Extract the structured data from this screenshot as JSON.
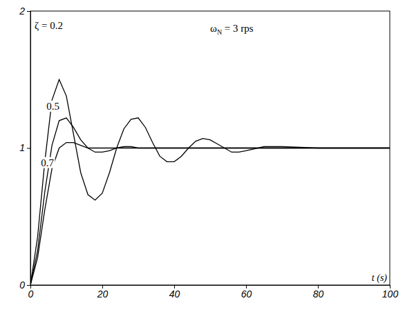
{
  "chart_data": {
    "type": "line",
    "x_label": "t (s)",
    "annotation": "ωN = 3 rps",
    "x": [
      0,
      2,
      4,
      6,
      8,
      10,
      12,
      14,
      16,
      18,
      20,
      22,
      24,
      26,
      28,
      30,
      32,
      34,
      36,
      38,
      40,
      42,
      44,
      46,
      48,
      50,
      52,
      54,
      56,
      58,
      60,
      65,
      70,
      80,
      90,
      100
    ],
    "series": [
      {
        "name": "ζ = 0.2",
        "color": "#000000",
        "values": [
          0,
          0.35,
          0.9,
          1.35,
          1.5,
          1.38,
          1.1,
          0.82,
          0.66,
          0.62,
          0.67,
          0.82,
          1.0,
          1.14,
          1.21,
          1.22,
          1.15,
          1.04,
          0.94,
          0.9,
          0.9,
          0.94,
          1.0,
          1.05,
          1.07,
          1.06,
          1.03,
          1.0,
          0.97,
          0.97,
          0.98,
          1.01,
          1.01,
          1.0,
          1.0,
          1.0
        ]
      },
      {
        "name": "0.5",
        "color": "#000000",
        "values": [
          0,
          0.25,
          0.68,
          1.02,
          1.2,
          1.22,
          1.15,
          1.06,
          1.0,
          0.97,
          0.97,
          0.98,
          1.0,
          1.01,
          1.01,
          1.0,
          1.0,
          1.0,
          1.0,
          1.0,
          1.0,
          1.0,
          1.0,
          1.0,
          1.0,
          1.0,
          1.0,
          1.0,
          1.0,
          1.0,
          1.0,
          1.0,
          1.0,
          1.0,
          1.0,
          1.0
        ]
      },
      {
        "name": "0.7",
        "color": "#000000",
        "values": [
          0,
          0.2,
          0.55,
          0.85,
          1.0,
          1.04,
          1.04,
          1.02,
          1.0,
          1.0,
          1.0,
          1.0,
          1.0,
          1.0,
          1.0,
          1.0,
          1.0,
          1.0,
          1.0,
          1.0,
          1.0,
          1.0,
          1.0,
          1.0,
          1.0,
          1.0,
          1.0,
          1.0,
          1.0,
          1.0,
          1.0,
          1.0,
          1.0,
          1.0,
          1.0,
          1.0
        ]
      }
    ],
    "xlim": [
      0,
      100
    ],
    "xticks": [
      0,
      20,
      40,
      60,
      80,
      100
    ],
    "ylim": [
      0,
      2
    ],
    "yticks": [
      0,
      1,
      2
    ],
    "grid": false
  }
}
